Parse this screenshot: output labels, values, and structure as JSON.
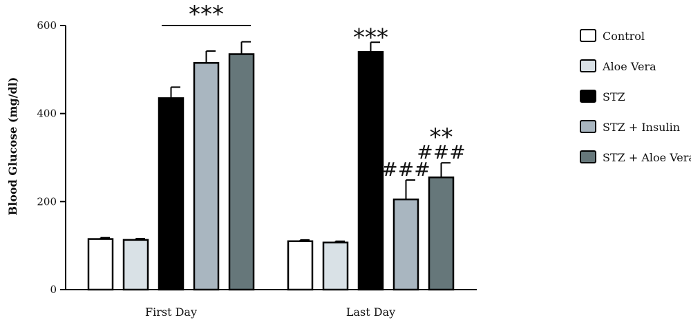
{
  "chart_data": {
    "type": "bar",
    "xlabel": "",
    "ylabel": "Blood Glucose (mg/dl)",
    "ylim": [
      0,
      600
    ],
    "yticks": [
      0,
      200,
      400,
      600
    ],
    "grid": false,
    "legend_position": "right",
    "categories": [
      "First Day",
      "Last Day"
    ],
    "series": [
      {
        "name": "Control",
        "color": "#ffffff",
        "values": [
          115,
          110
        ],
        "errors": [
          3,
          3
        ]
      },
      {
        "name": "Aloe Vera",
        "color": "#d9e1e6",
        "values": [
          113,
          107
        ],
        "errors": [
          3,
          3
        ]
      },
      {
        "name": "STZ",
        "color": "#000000",
        "values": [
          435,
          540
        ],
        "errors": [
          25,
          22
        ]
      },
      {
        "name": "STZ + Insulin",
        "color": "#a9b6c0",
        "values": [
          515,
          205
        ],
        "errors": [
          27,
          44
        ]
      },
      {
        "name": "STZ + Aloe Vera",
        "color": "#66777a",
        "values": [
          535,
          255
        ],
        "errors": [
          28,
          33
        ]
      }
    ],
    "annotations": [
      {
        "text": "***",
        "group": 0,
        "target": "bracket-STZ-to-STZ+Aloe-Vera"
      },
      {
        "text": "***",
        "group": 1,
        "series": 2
      },
      {
        "text": "###",
        "group": 1,
        "series": 3
      },
      {
        "text": "###",
        "group": 1,
        "series": 4
      },
      {
        "text": "**",
        "group": 1,
        "series": 4
      }
    ]
  }
}
